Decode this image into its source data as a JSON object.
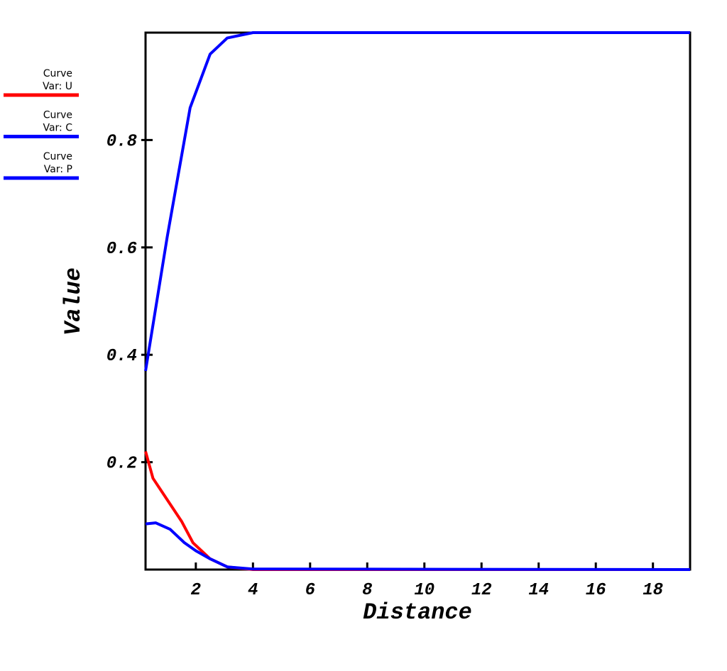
{
  "chart_data": {
    "type": "line",
    "xlabel": "Distance",
    "ylabel": "Value",
    "legend_label": "Curve",
    "xlim": [
      0.24,
      19.3
    ],
    "ylim": [
      0,
      1
    ],
    "xticks": [
      2,
      4,
      6,
      8,
      10,
      12,
      14,
      16,
      18
    ],
    "yticks": [
      0.2,
      0.4,
      0.6,
      0.8
    ],
    "legend": "left",
    "series": [
      {
        "name": "Var: U",
        "color": "#ff0000",
        "x": [
          0.24,
          0.5,
          1.0,
          1.5,
          1.9,
          2.5,
          3.1,
          4.0,
          19.3
        ],
        "values": [
          0.22,
          0.17,
          0.13,
          0.09,
          0.05,
          0.02,
          0.005,
          0.0,
          0.0
        ]
      },
      {
        "name": "Var: C",
        "color": "#0000ff",
        "x": [
          0.24,
          1.0,
          1.8,
          2.5,
          3.1,
          4.0,
          19.3
        ],
        "values": [
          0.37,
          0.62,
          0.86,
          0.96,
          0.99,
          1.0,
          1.0
        ]
      },
      {
        "name": "Var: P",
        "color": "#0000ff",
        "x": [
          0.24,
          0.6,
          1.1,
          1.6,
          2.0,
          2.5,
          3.1,
          4.0,
          19.3
        ],
        "values": [
          0.085,
          0.087,
          0.075,
          0.05,
          0.035,
          0.02,
          0.005,
          0.001,
          0.0
        ]
      }
    ]
  }
}
